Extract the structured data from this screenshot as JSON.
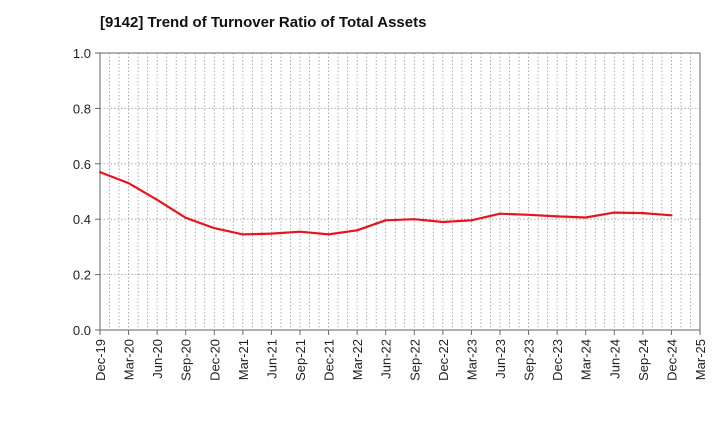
{
  "chart_data": {
    "type": "line",
    "title": "[9142]  Trend of Turnover Ratio of Total Assets",
    "xlabel": "",
    "ylabel": "",
    "categories": [
      "Dec-19",
      "Mar-20",
      "Jun-20",
      "Sep-20",
      "Dec-20",
      "Mar-21",
      "Jun-21",
      "Sep-21",
      "Dec-21",
      "Mar-22",
      "Jun-22",
      "Sep-22",
      "Dec-22",
      "Mar-23",
      "Jun-23",
      "Sep-23",
      "Dec-23",
      "Mar-24",
      "Jun-24",
      "Sep-24",
      "Dec-24",
      "Mar-25"
    ],
    "series": [
      {
        "values": [
          0.57,
          0.53,
          0.47,
          0.405,
          0.368,
          0.345,
          0.348,
          0.355,
          0.345,
          0.36,
          0.396,
          0.4,
          0.39,
          0.396,
          0.42,
          0.416,
          0.41,
          0.406,
          0.424,
          0.422,
          0.414,
          null
        ],
        "color": "#e8141b"
      }
    ],
    "ylim": [
      0,
      1.0
    ],
    "yticks": [
      0.0,
      0.2,
      0.4,
      0.6,
      0.8,
      1.0
    ],
    "ytick_labels": [
      "0.0",
      "0.2",
      "0.4",
      "0.6",
      "0.8",
      "1.0"
    ],
    "grid": true,
    "legend": "none"
  }
}
